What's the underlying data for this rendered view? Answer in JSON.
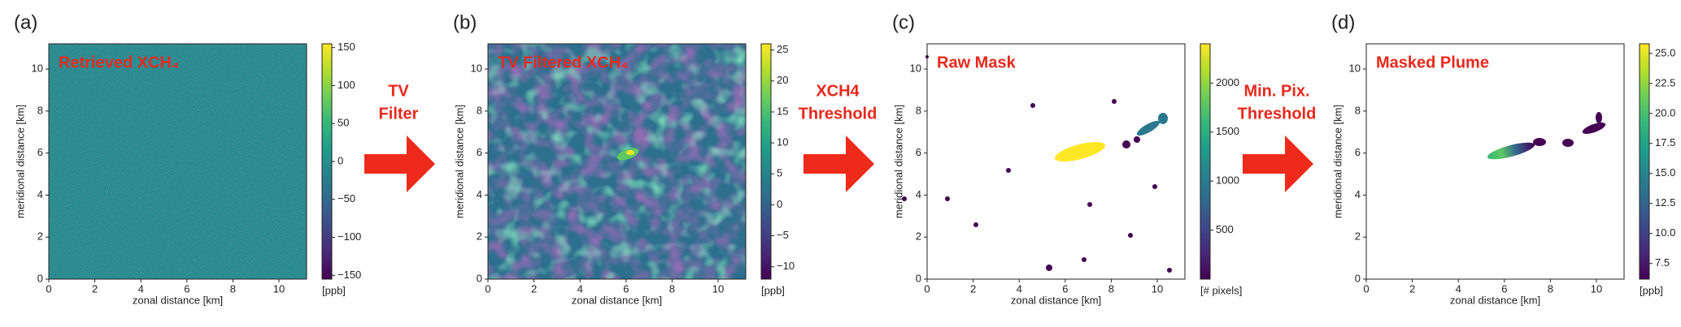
{
  "chart_data": [
    {
      "type": "heatmap",
      "panel_label": "(a)",
      "annotation": "Retrieved XCH₄",
      "xlabel": "zonal distance [km]",
      "ylabel": "meridional distance [km]",
      "xlim": [
        0,
        11.2
      ],
      "ylim": [
        0,
        11.2
      ],
      "xticks": [
        0,
        2,
        4,
        6,
        8,
        10
      ],
      "yticks": [
        0,
        2,
        4,
        6,
        8,
        10
      ],
      "colormap": "viridis",
      "colorbar": {
        "label": "[ppb]",
        "lim": [
          -155,
          155
        ],
        "ticks": [
          {
            "value": -150,
            "label": "−150"
          },
          {
            "value": -100,
            "label": "−100"
          },
          {
            "value": -50,
            "label": "−50"
          },
          0,
          50,
          100,
          150
        ]
      }
    },
    {
      "type": "heatmap",
      "panel_label": "(b)",
      "annotation": "TV Filtered XCH₄",
      "xlabel": "zonal distance [km]",
      "ylabel": "meridional distance [km]",
      "xlim": [
        0,
        11.2
      ],
      "ylim": [
        0,
        11.2
      ],
      "xticks": [
        0,
        2,
        4,
        6,
        8,
        10
      ],
      "yticks": [
        0,
        2,
        4,
        6,
        8,
        10
      ],
      "colormap": "viridis",
      "colorbar": {
        "label": "[ppb]",
        "lim": [
          -12,
          26
        ],
        "ticks": [
          {
            "value": -10,
            "label": "−10"
          },
          {
            "value": -5,
            "label": "−5"
          },
          0,
          5,
          10,
          15,
          20,
          25
        ]
      }
    },
    {
      "type": "heatmap",
      "panel_label": "(c)",
      "annotation": "Raw Mask",
      "xlabel": "zonal distance [km]",
      "ylabel": "meridional distance [km]",
      "xlim": [
        0,
        11.2
      ],
      "ylim": [
        0,
        11.2
      ],
      "xticks": [
        0,
        2,
        4,
        6,
        8,
        10
      ],
      "yticks": [
        0,
        2,
        4,
        6,
        8,
        10
      ],
      "colormap": "viridis",
      "colorbar": {
        "label": "[# pixels]",
        "lim": [
          0,
          2400
        ],
        "ticks": [
          500,
          1000,
          1500,
          2000
        ]
      }
    },
    {
      "type": "heatmap",
      "panel_label": "(d)",
      "annotation": "Masked Plume",
      "xlabel": "zonal distance [km]",
      "ylabel": "meridional distance [km]",
      "xlim": [
        0,
        11.2
      ],
      "ylim": [
        0,
        11.2
      ],
      "xticks": [
        0,
        2,
        4,
        6,
        8,
        10
      ],
      "yticks": [
        0,
        2,
        4,
        6,
        8,
        10
      ],
      "colormap": "viridis",
      "colorbar": {
        "label": "[ppb]",
        "lim": [
          6.2,
          25.8
        ],
        "ticks": [
          7.5,
          {
            "value": 10,
            "label": "10.0"
          },
          12.5,
          {
            "value": 15,
            "label": "15.0"
          },
          17.5,
          {
            "value": 20,
            "label": "20.0"
          },
          22.5,
          {
            "value": 25,
            "label": "25.0"
          }
        ]
      }
    }
  ],
  "steps": [
    [
      "TV",
      "Filter"
    ],
    [
      "XCH4",
      "Threshold"
    ],
    [
      "Min. Pix.",
      "Threshold"
    ]
  ]
}
